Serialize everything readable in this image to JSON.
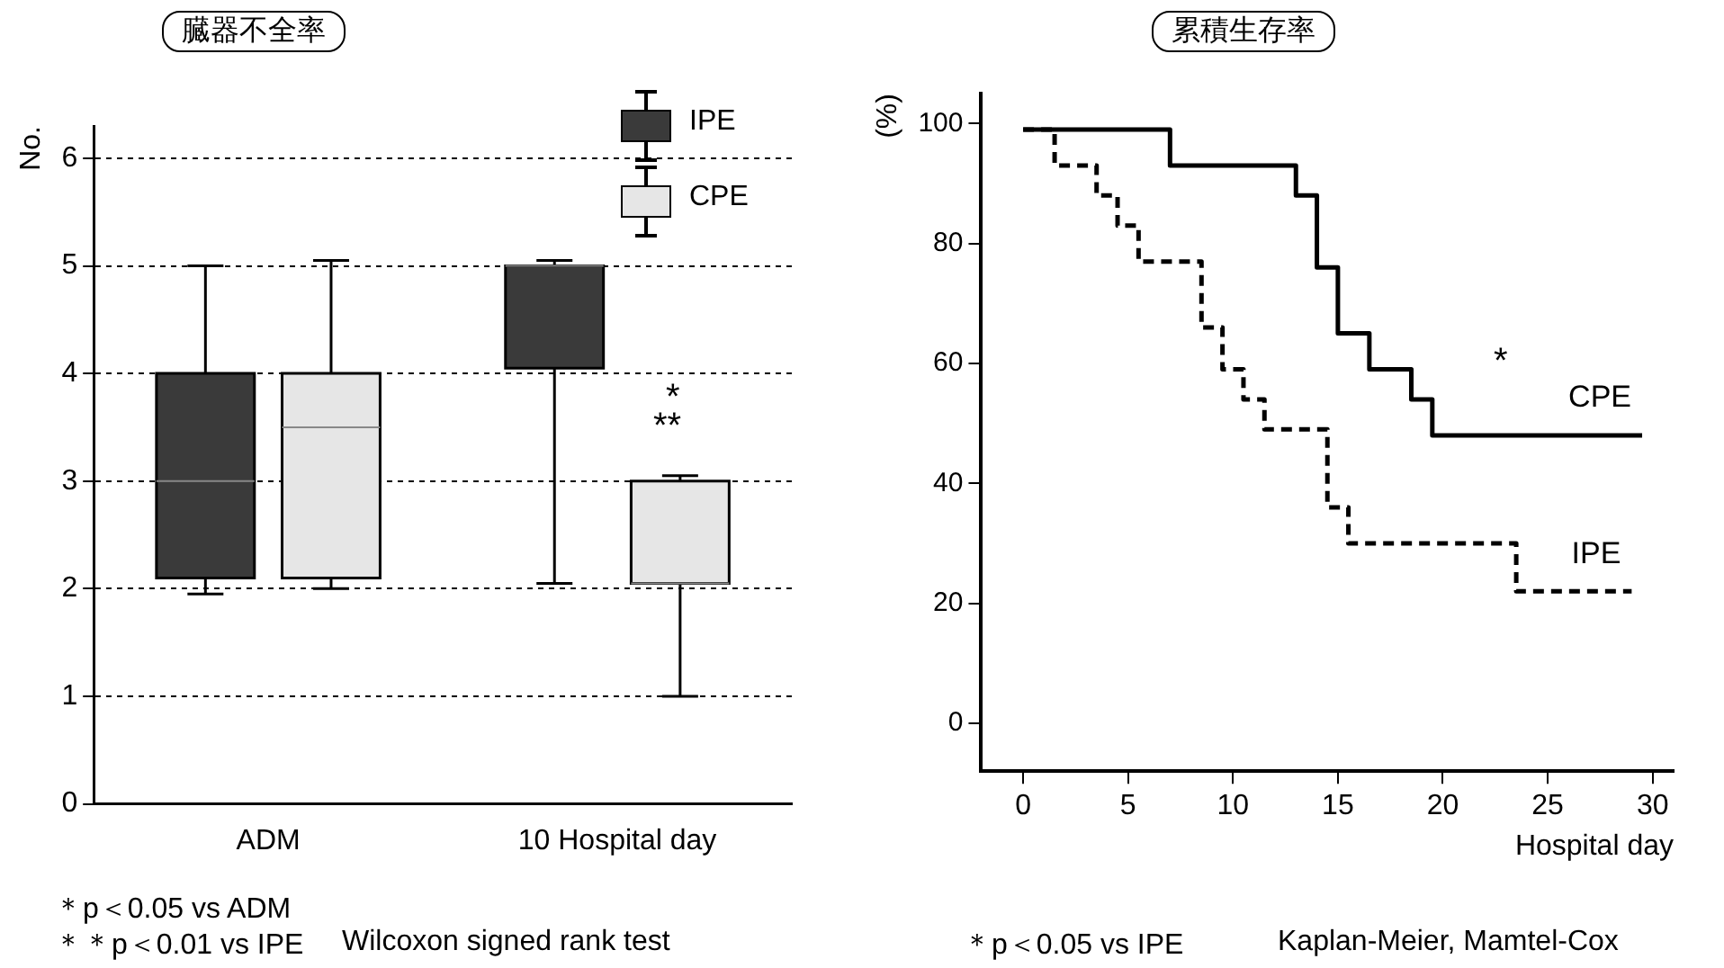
{
  "chart_data": [
    {
      "type": "box",
      "title": "臓器不全率",
      "ylabel": "No.",
      "categories": [
        "ADM",
        "10 Hospital day"
      ],
      "ylim": [
        0,
        6.3
      ],
      "yticks": [
        0,
        1,
        2,
        3,
        4,
        5,
        6
      ],
      "grid": "y",
      "legend": "top right",
      "series": [
        {
          "name": "IPE",
          "color": "#3a3a3a",
          "boxes": [
            {
              "low": 1.95,
              "q1": 2.1,
              "median": 3.0,
              "q3": 4.0,
              "high": 5.0
            },
            {
              "low": 2.05,
              "q1": 4.05,
              "median": 5.0,
              "q3": 5.0,
              "high": 5.05
            }
          ]
        },
        {
          "name": "CPE",
          "color": "#e6e6e6",
          "boxes": [
            {
              "low": 2.0,
              "q1": 2.1,
              "median": 3.5,
              "q3": 4.0,
              "high": 5.05
            },
            {
              "low": 1.0,
              "q1": 2.05,
              "median": 2.05,
              "q3": 3.0,
              "high": 3.05
            }
          ]
        }
      ],
      "annotations": [
        "*",
        "**",
        "＊p＜0.05 vs ADM",
        "＊＊p＜0.01 vs IPE",
        "Wilcoxon signed rank test"
      ]
    },
    {
      "type": "step",
      "title": "累積生存率",
      "ylabel": "(%)",
      "xlabel": "Hospital day",
      "xlim": [
        -2,
        31
      ],
      "xticks": [
        0,
        5,
        10,
        15,
        20,
        25,
        30
      ],
      "ylim": [
        -8,
        105
      ],
      "yticks": [
        0,
        20,
        40,
        60,
        80,
        100
      ],
      "grid": false,
      "legend": false,
      "series": [
        {
          "name": "CPE",
          "color": "#000000",
          "line_style": "solid",
          "x": [
            0,
            7,
            13,
            14,
            15,
            16.5,
            18.5,
            19.5,
            29.5
          ],
          "values": [
            99,
            93,
            88,
            76,
            65,
            59,
            54,
            48,
            48
          ]
        },
        {
          "name": "IPE",
          "color": "#000000",
          "line_style": "dashed",
          "x": [
            0,
            1.5,
            3.5,
            4.5,
            5.5,
            8.5,
            9.5,
            10.5,
            11.5,
            14.5,
            15.5,
            23.5,
            29
          ],
          "values": [
            99,
            93,
            88,
            83,
            77,
            66,
            59,
            54,
            49,
            36,
            30,
            22,
            22
          ]
        }
      ],
      "annotations": [
        "*",
        "＊p＜0.05 vs IPE",
        "Kaplan-Meier, Mamtel-Cox"
      ]
    }
  ]
}
